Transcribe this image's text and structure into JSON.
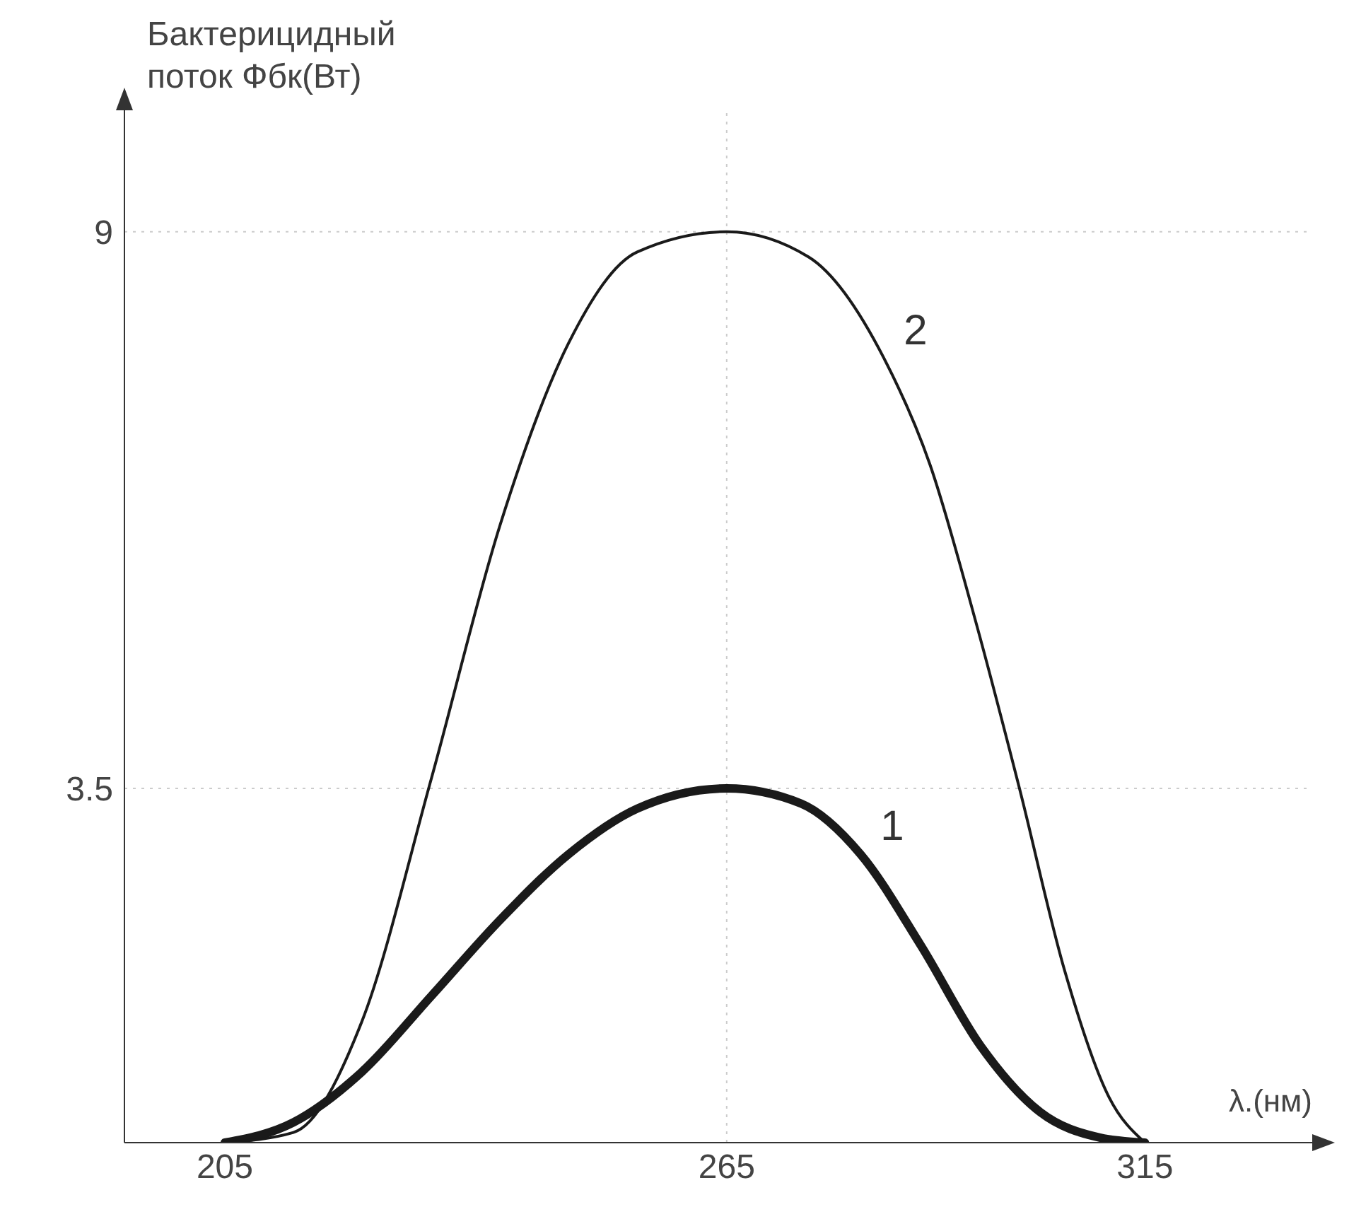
{
  "chart_data": {
    "type": "line",
    "ylabel": "Бактерицидный поток Фбк(Вт)",
    "xlabel": "λ.(нм)",
    "xlim": [
      193,
      335
    ],
    "xticks": [
      205,
      265,
      315
    ],
    "ylim": [
      0,
      10.2
    ],
    "yticks": [
      3.5,
      9
    ],
    "marker": "none",
    "line_style": "solid",
    "ref_lines": [
      {
        "axis": "y",
        "value": 9,
        "color": "#cccccc",
        "line_style": "dotted"
      },
      {
        "axis": "y",
        "value": 3.5,
        "color": "#cccccc",
        "line_style": "dotted"
      },
      {
        "axis": "x",
        "value": 265,
        "color": "#cccccc",
        "line_style": "dotted"
      }
    ],
    "series": [
      {
        "name": "1",
        "color": "#1a1a1a",
        "x": [
          205,
          213.2,
          221.4,
          229.7,
          237.9,
          246.1,
          254.3,
          265,
          273.9,
          281,
          288.2,
          295.4,
          302.5,
          309.6,
          315
        ],
        "values": [
          0,
          0.2,
          0.7,
          1.45,
          2.2,
          2.85,
          3.3,
          3.5,
          3.35,
          2.85,
          1.95,
          0.95,
          0.3,
          0.05,
          0
        ]
      },
      {
        "name": "2",
        "color": "#1a1a1a",
        "x": [
          205,
          213.2,
          221.4,
          229.7,
          237.9,
          246.1,
          254.3,
          265,
          274.8,
          283.8,
          289.3,
          294.6,
          300,
          305.4,
          310.7,
          315
        ],
        "values": [
          0,
          0.1,
          1.2,
          3.6,
          6.1,
          7.9,
          8.8,
          9,
          8.75,
          7.75,
          6.7,
          5.2,
          3.5,
          1.7,
          0.45,
          0
        ]
      }
    ]
  }
}
